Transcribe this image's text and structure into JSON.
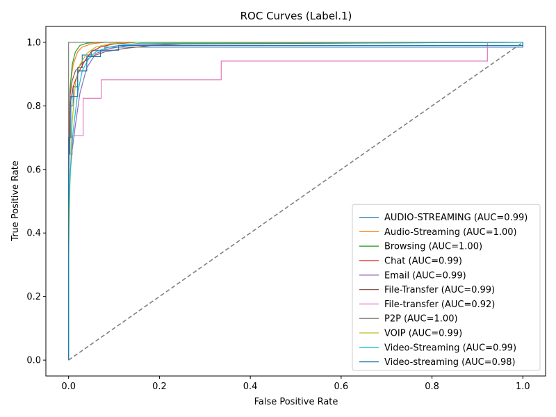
{
  "chart_data": {
    "type": "line",
    "title": "ROC Curves (Label.1)",
    "xlabel": "False Positive Rate",
    "ylabel": "True Positive Rate",
    "xlim": [
      -0.05,
      1.05
    ],
    "ylim": [
      -0.05,
      1.05
    ],
    "xticks": [
      0.0,
      0.2,
      0.4,
      0.6,
      0.8,
      1.0
    ],
    "yticks": [
      0.0,
      0.2,
      0.4,
      0.6,
      0.8,
      1.0
    ],
    "xtick_labels": [
      "0.0",
      "0.2",
      "0.4",
      "0.6",
      "0.8",
      "1.0"
    ],
    "ytick_labels": [
      "0.0",
      "0.2",
      "0.4",
      "0.6",
      "0.8",
      "1.0"
    ],
    "grid": false,
    "legend_position": "lower-right",
    "diagonal": {
      "x": [
        0,
        1
      ],
      "y": [
        0,
        1
      ],
      "color": "#808080",
      "style": "dashed"
    },
    "series": [
      {
        "name": "AUDIO-STREAMING (AUC=0.99)",
        "color": "#1f77b4",
        "x": [
          0,
          0,
          0.003,
          0.003,
          0.01,
          0.01,
          0.02,
          0.02,
          0.03,
          0.03,
          0.05,
          0.05,
          0.08,
          0.08,
          1.0,
          1.0
        ],
        "y": [
          0,
          0.65,
          0.65,
          0.8,
          0.8,
          0.86,
          0.86,
          0.92,
          0.92,
          0.96,
          0.96,
          0.975,
          0.975,
          0.985,
          0.985,
          1.0
        ]
      },
      {
        "name": "Audio-Streaming (AUC=1.00)",
        "color": "#ff7f0e",
        "x": [
          0,
          0.0,
          0.002,
          0.005,
          0.01,
          0.02,
          0.03,
          0.05,
          0.08,
          1.0
        ],
        "y": [
          0,
          0.6,
          0.8,
          0.88,
          0.93,
          0.97,
          0.985,
          0.995,
          1.0,
          1.0
        ]
      },
      {
        "name": "Browsing (AUC=1.00)",
        "color": "#2ca02c",
        "x": [
          0,
          0.0,
          0.003,
          0.008,
          0.015,
          0.025,
          0.04,
          0.06,
          1.0
        ],
        "y": [
          0,
          0.5,
          0.85,
          0.93,
          0.97,
          0.99,
          0.997,
          1.0,
          1.0
        ]
      },
      {
        "name": "Chat (AUC=0.99)",
        "color": "#d62728",
        "x": [
          0,
          0.0,
          0.003,
          0.01,
          0.02,
          0.035,
          0.05,
          0.07,
          0.1,
          0.15,
          1.0
        ],
        "y": [
          0,
          0.55,
          0.8,
          0.86,
          0.9,
          0.94,
          0.97,
          0.985,
          0.995,
          1.0,
          1.0
        ]
      },
      {
        "name": "Email (AUC=0.99)",
        "color": "#9467bd",
        "x": [
          0,
          0.0,
          0.003,
          0.008,
          0.015,
          0.025,
          0.04,
          0.06,
          0.09,
          0.13,
          0.2,
          1.0
        ],
        "y": [
          0,
          0.4,
          0.58,
          0.66,
          0.74,
          0.84,
          0.92,
          0.965,
          0.98,
          0.99,
          0.995,
          1.0
        ]
      },
      {
        "name": "File-Transfer (AUC=0.99)",
        "color": "#8c564b",
        "x": [
          0,
          0.0,
          0.003,
          0.008,
          0.015,
          0.03,
          0.05,
          0.08,
          0.12,
          0.18,
          0.25,
          1.0
        ],
        "y": [
          0,
          0.55,
          0.83,
          0.88,
          0.91,
          0.935,
          0.955,
          0.97,
          0.98,
          0.99,
          0.995,
          1.0
        ]
      },
      {
        "name": "File-transfer (AUC=0.92)",
        "color": "#e377c2",
        "x": [
          0,
          0,
          0.008,
          0.008,
          0.032,
          0.032,
          0.072,
          0.072,
          0.336,
          0.336,
          0.922,
          0.922,
          1.0
        ],
        "y": [
          0,
          0.647,
          0.647,
          0.706,
          0.706,
          0.824,
          0.824,
          0.882,
          0.882,
          0.941,
          0.941,
          1.0,
          1.0
        ]
      },
      {
        "name": "P2P (AUC=1.00)",
        "color": "#7f7f7f",
        "x": [
          0,
          0,
          1.0,
          1.0
        ],
        "y": [
          0,
          1.0,
          1.0,
          1.0
        ]
      },
      {
        "name": "VOIP (AUC=0.99)",
        "color": "#bcbd22",
        "x": [
          0,
          0.0,
          0.003,
          0.008,
          0.015,
          0.025,
          0.04,
          0.06,
          0.09,
          0.13,
          1.0
        ],
        "y": [
          0,
          0.3,
          0.55,
          0.75,
          0.87,
          0.93,
          0.965,
          0.985,
          0.995,
          1.0,
          1.0
        ]
      },
      {
        "name": "Video-Streaming (AUC=0.99)",
        "color": "#17becf",
        "x": [
          0,
          0.0,
          0.004,
          0.01,
          0.02,
          0.03,
          0.045,
          0.06,
          0.09,
          0.12,
          0.16,
          1.0
        ],
        "y": [
          0,
          0.45,
          0.6,
          0.72,
          0.84,
          0.91,
          0.95,
          0.97,
          0.985,
          0.992,
          0.997,
          1.0
        ]
      },
      {
        "name": "Video-streaming (AUC=0.98)",
        "color": "#1f77b4",
        "x": [
          0,
          0,
          0.005,
          0.005,
          0.02,
          0.02,
          0.04,
          0.04,
          0.07,
          0.07,
          0.11,
          0.11,
          1.0,
          1.0
        ],
        "y": [
          0,
          0.7,
          0.7,
          0.83,
          0.83,
          0.91,
          0.91,
          0.955,
          0.955,
          0.975,
          0.975,
          0.99,
          0.99,
          1.0
        ]
      }
    ]
  }
}
